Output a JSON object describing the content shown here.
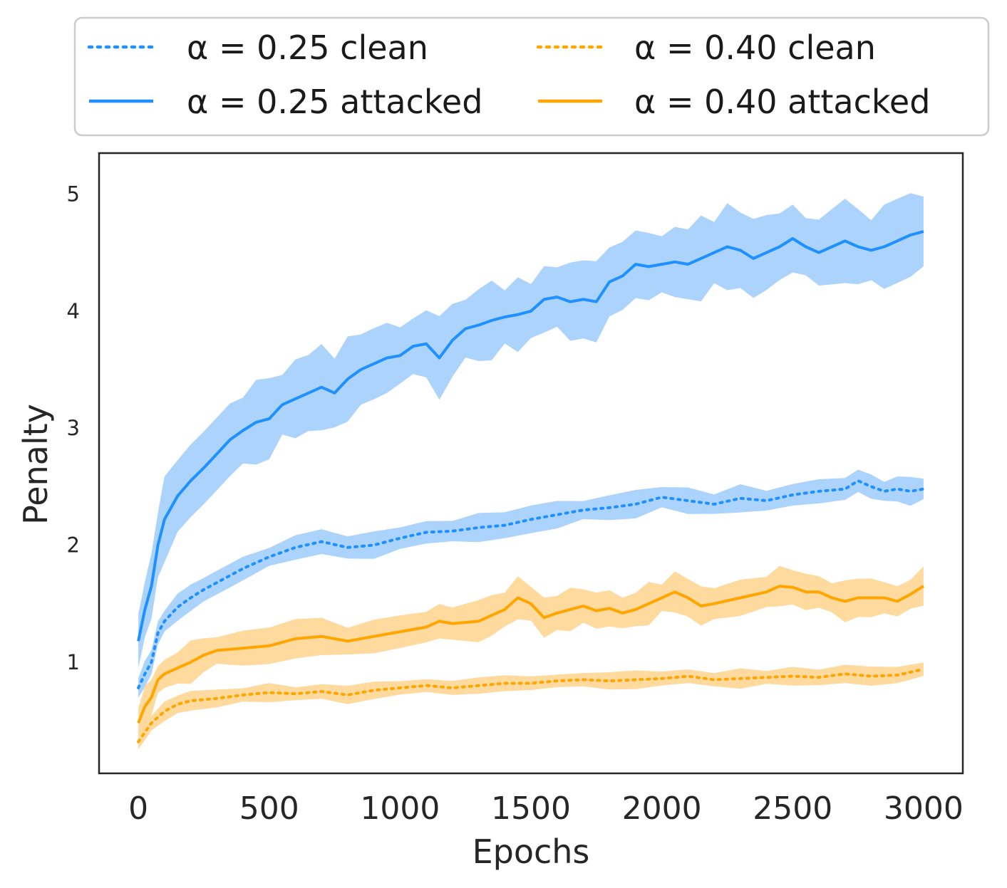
{
  "chart_data": {
    "type": "line",
    "xlabel": "Epochs",
    "ylabel": "Penalty",
    "xlim": [
      -150,
      3150
    ],
    "ylim": [
      0.05,
      5.35
    ],
    "xticks": [
      0,
      500,
      1000,
      1500,
      2000,
      2500,
      3000
    ],
    "yticks": [
      1,
      2,
      3,
      4,
      5
    ],
    "xtick_labels": [
      "0",
      "500",
      "1000",
      "1500",
      "2000",
      "2500",
      "3000"
    ],
    "ytick_labels": [
      "1",
      "2",
      "3",
      "4",
      "5"
    ],
    "legend_position": "top (above plot)",
    "grid": false,
    "series": [
      {
        "name": "α = 0.25 clean",
        "color": "#1E90FF",
        "band_color": "#A6D1FB",
        "style": "dotted",
        "x": [
          0,
          25,
          50,
          75,
          100,
          150,
          200,
          250,
          300,
          400,
          500,
          600,
          700,
          800,
          900,
          1000,
          1100,
          1200,
          1300,
          1400,
          1500,
          1600,
          1700,
          1800,
          1900,
          2000,
          2100,
          2200,
          2300,
          2400,
          2500,
          2600,
          2700,
          2750,
          2800,
          2850,
          2900,
          2950,
          3000
        ],
        "y": [
          0.78,
          0.9,
          1.0,
          1.25,
          1.35,
          1.47,
          1.55,
          1.62,
          1.68,
          1.8,
          1.9,
          1.98,
          2.03,
          1.98,
          2.0,
          2.06,
          2.11,
          2.12,
          2.15,
          2.17,
          2.22,
          2.26,
          2.3,
          2.32,
          2.35,
          2.41,
          2.38,
          2.35,
          2.4,
          2.38,
          2.43,
          2.46,
          2.48,
          2.55,
          2.5,
          2.46,
          2.48,
          2.46,
          2.48
        ],
        "band": 0.1
      },
      {
        "name": "α = 0.25 attacked",
        "color": "#1E90FF",
        "band_color": "#A6D1FB",
        "style": "solid",
        "x": [
          0,
          25,
          50,
          75,
          100,
          150,
          200,
          250,
          300,
          350,
          400,
          450,
          500,
          550,
          600,
          650,
          700,
          750,
          800,
          850,
          900,
          950,
          1000,
          1050,
          1100,
          1150,
          1200,
          1250,
          1300,
          1350,
          1400,
          1450,
          1500,
          1550,
          1600,
          1650,
          1700,
          1750,
          1800,
          1850,
          1900,
          1950,
          2000,
          2050,
          2100,
          2150,
          2200,
          2250,
          2300,
          2350,
          2400,
          2450,
          2500,
          2550,
          2600,
          2650,
          2700,
          2750,
          2800,
          2850,
          2900,
          2950,
          3000
        ],
        "y": [
          1.18,
          1.45,
          1.65,
          2.0,
          2.22,
          2.42,
          2.55,
          2.66,
          2.78,
          2.9,
          2.98,
          3.05,
          3.08,
          3.2,
          3.25,
          3.3,
          3.35,
          3.3,
          3.42,
          3.5,
          3.55,
          3.6,
          3.62,
          3.7,
          3.72,
          3.6,
          3.75,
          3.85,
          3.88,
          3.92,
          3.95,
          3.97,
          4.0,
          4.1,
          4.12,
          4.08,
          4.1,
          4.08,
          4.25,
          4.3,
          4.4,
          4.38,
          4.4,
          4.42,
          4.4,
          4.45,
          4.5,
          4.55,
          4.52,
          4.45,
          4.5,
          4.55,
          4.62,
          4.55,
          4.5,
          4.55,
          4.6,
          4.55,
          4.52,
          4.55,
          4.6,
          4.65,
          4.68
        ],
        "band": 0.3
      },
      {
        "name": "α = 0.40 clean",
        "color": "#FFA500",
        "band_color": "#FFD899",
        "style": "dotted",
        "x": [
          0,
          25,
          50,
          100,
          150,
          200,
          300,
          400,
          500,
          600,
          700,
          800,
          900,
          1000,
          1100,
          1200,
          1300,
          1400,
          1500,
          1600,
          1700,
          1800,
          1900,
          2000,
          2100,
          2200,
          2300,
          2400,
          2500,
          2600,
          2700,
          2800,
          2900,
          3000
        ],
        "y": [
          0.32,
          0.4,
          0.48,
          0.58,
          0.64,
          0.67,
          0.69,
          0.72,
          0.74,
          0.73,
          0.75,
          0.72,
          0.76,
          0.78,
          0.8,
          0.78,
          0.8,
          0.82,
          0.82,
          0.84,
          0.85,
          0.84,
          0.85,
          0.86,
          0.88,
          0.85,
          0.86,
          0.87,
          0.88,
          0.87,
          0.9,
          0.88,
          0.89,
          0.94
        ],
        "band": 0.07
      },
      {
        "name": "α = 0.40 attacked",
        "color": "#FFA500",
        "band_color": "#FFD899",
        "style": "solid",
        "x": [
          0,
          25,
          50,
          75,
          100,
          150,
          200,
          250,
          300,
          400,
          500,
          600,
          700,
          800,
          900,
          1000,
          1100,
          1150,
          1200,
          1300,
          1350,
          1400,
          1450,
          1500,
          1550,
          1600,
          1650,
          1700,
          1750,
          1800,
          1850,
          1900,
          1950,
          2000,
          2050,
          2100,
          2150,
          2200,
          2300,
          2400,
          2450,
          2500,
          2550,
          2600,
          2650,
          2700,
          2750,
          2800,
          2850,
          2900,
          2950,
          3000
        ],
        "y": [
          0.48,
          0.62,
          0.7,
          0.85,
          0.9,
          0.95,
          1.0,
          1.06,
          1.1,
          1.12,
          1.14,
          1.2,
          1.22,
          1.18,
          1.22,
          1.26,
          1.3,
          1.35,
          1.33,
          1.35,
          1.4,
          1.45,
          1.55,
          1.5,
          1.38,
          1.42,
          1.45,
          1.48,
          1.44,
          1.46,
          1.42,
          1.45,
          1.5,
          1.55,
          1.6,
          1.55,
          1.48,
          1.5,
          1.55,
          1.6,
          1.65,
          1.64,
          1.6,
          1.6,
          1.55,
          1.52,
          1.55,
          1.55,
          1.55,
          1.52,
          1.58,
          1.65
        ],
        "band": 0.15
      }
    ]
  }
}
